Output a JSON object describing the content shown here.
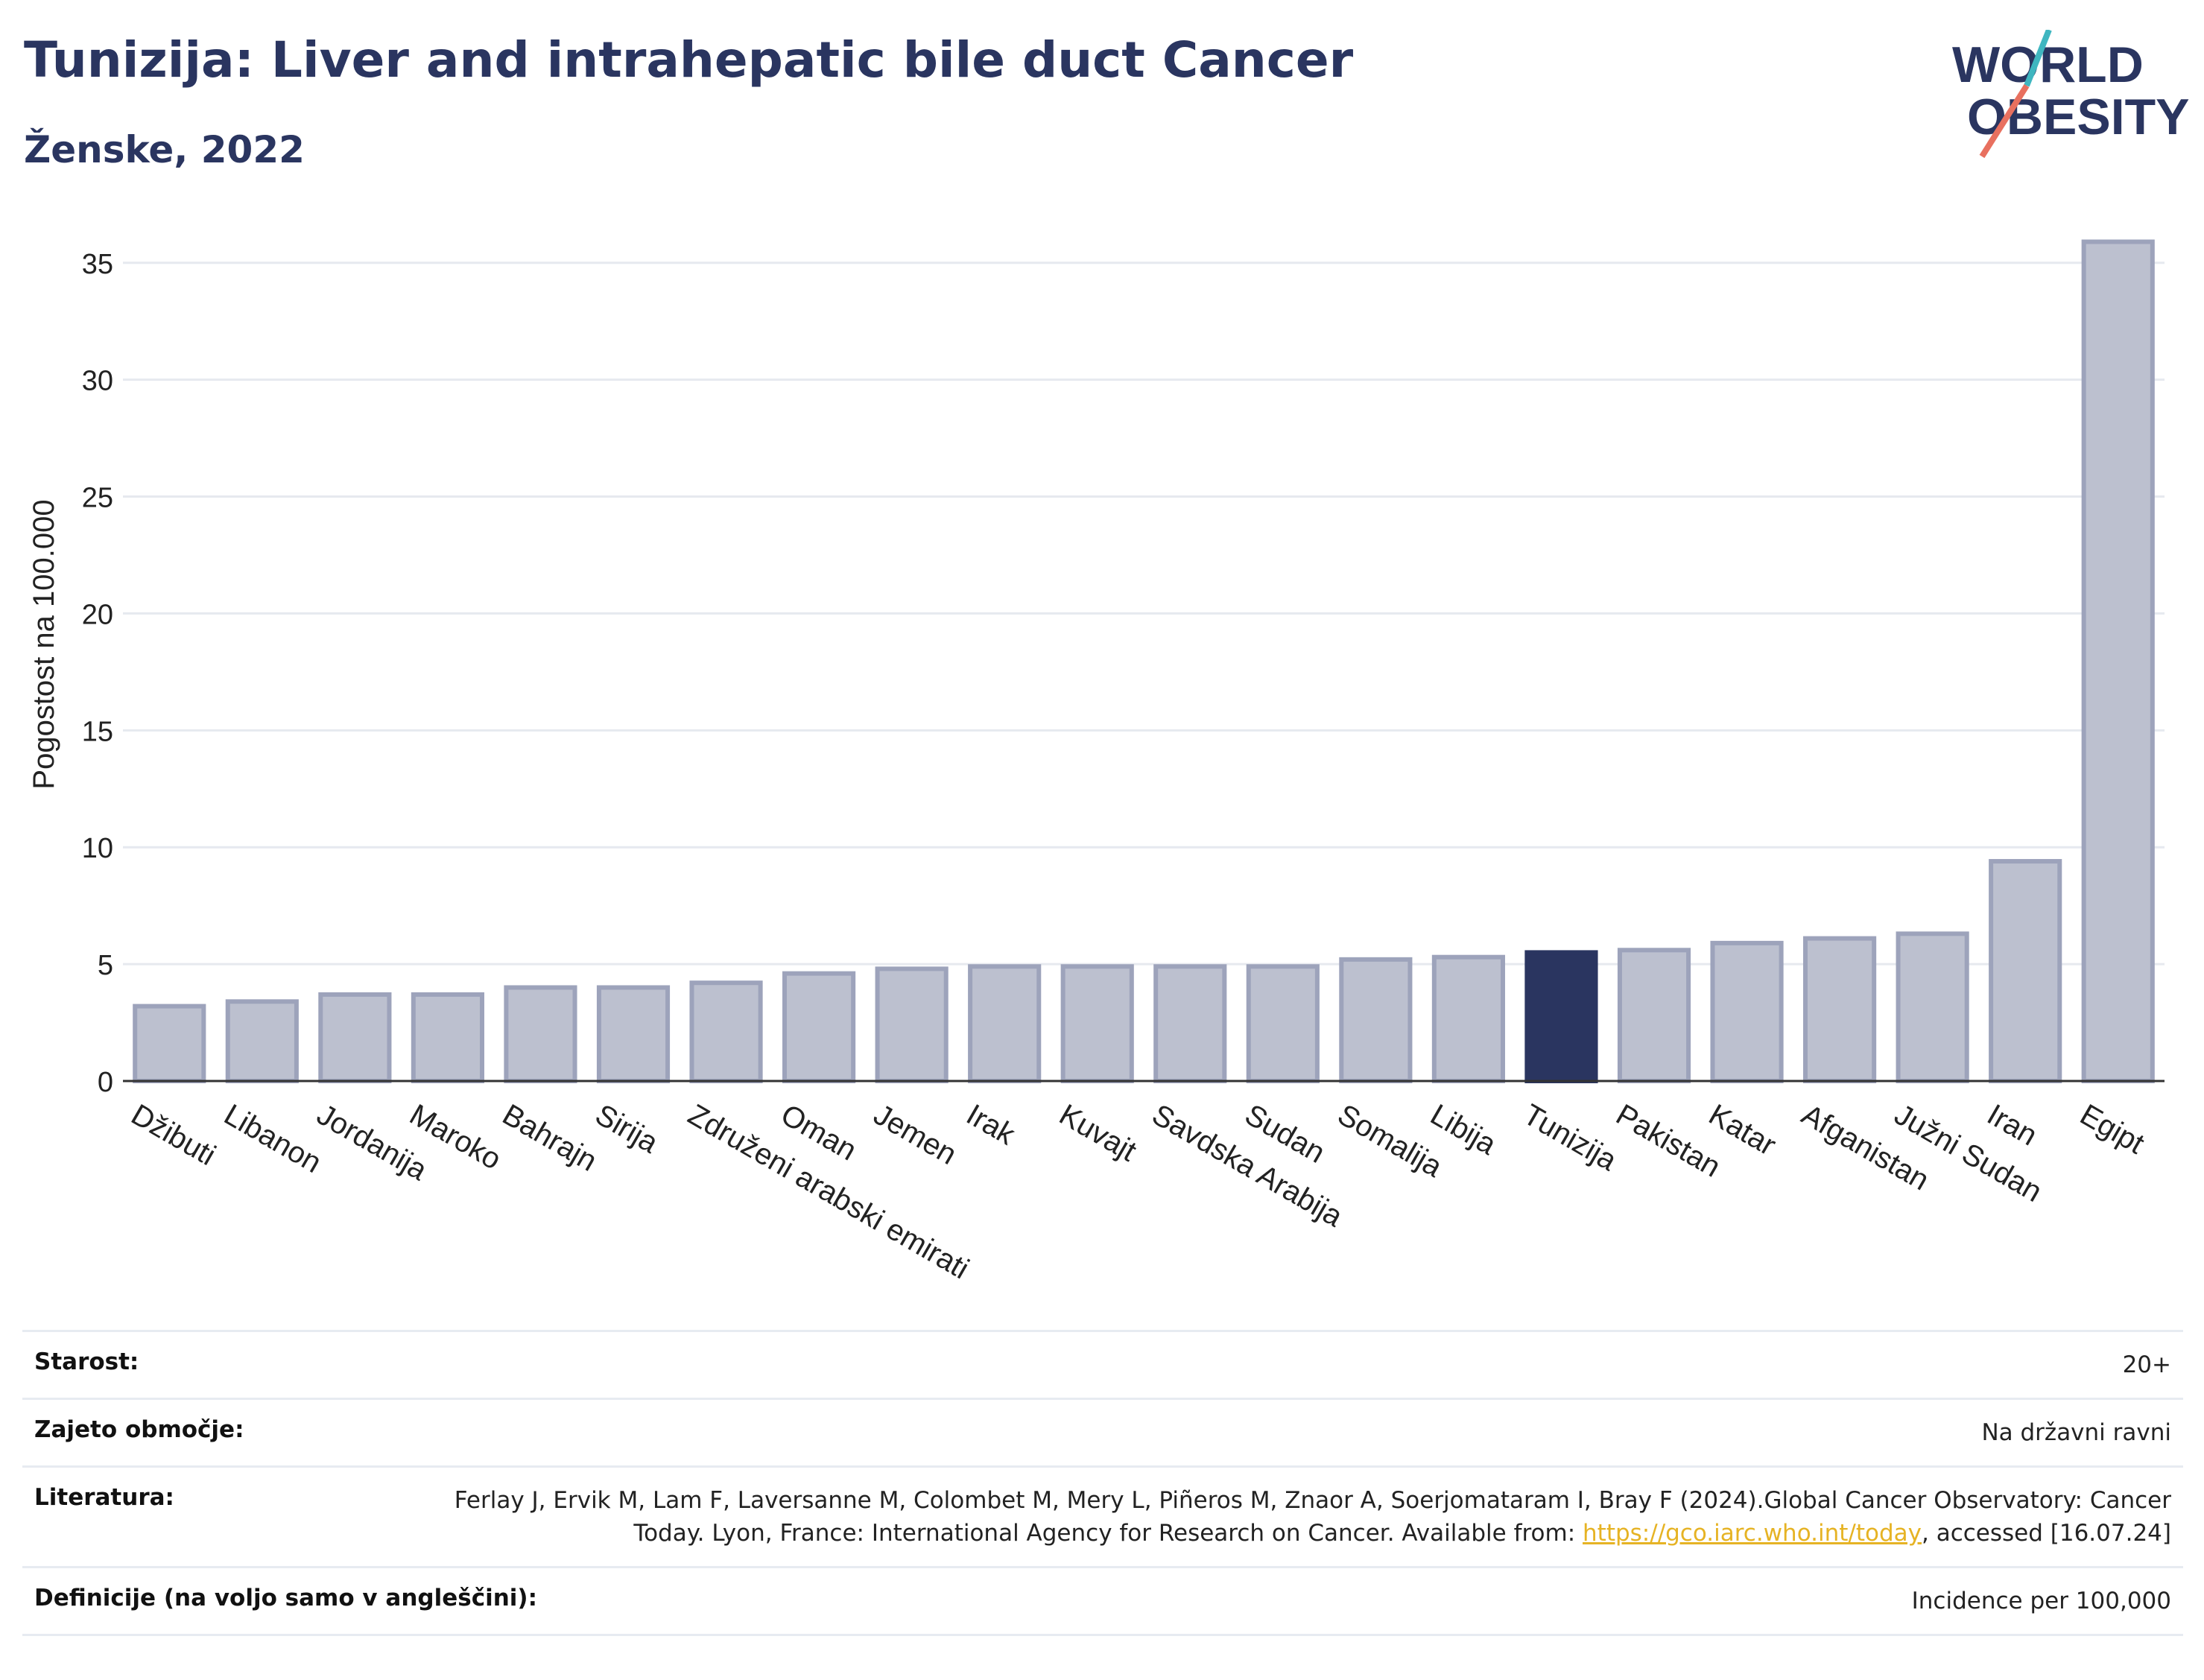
{
  "title": "Tunizija: Liver and intrahepatic bile duct Cancer",
  "subtitle": "Ženske, 2022",
  "logo": {
    "line1": "WORLD",
    "line2": "OBESITY"
  },
  "colors": {
    "bar": "#bcc0cf",
    "bar_edge": "#9da3bb",
    "highlight": "#2a3560",
    "title": "#2a3560",
    "grid": "#e6e9ef",
    "link": "#e6b324"
  },
  "chart_data": {
    "type": "bar",
    "ylabel": "Pogostost na 100.000",
    "xlabel": "",
    "ylim": [
      0,
      37
    ],
    "yticks": [
      0,
      5,
      10,
      15,
      20,
      25,
      30,
      35
    ],
    "grid": true,
    "highlight": "Tunizija",
    "categories": [
      "Džibuti",
      "Libanon",
      "Jordanija",
      "Maroko",
      "Bahrajn",
      "Sirija",
      "Združeni arabski emirati",
      "Oman",
      "Jemen",
      "Irak",
      "Kuvajt",
      "Savdska Arabija",
      "Sudan",
      "Somalija",
      "Libija",
      "Tunizija",
      "Pakistan",
      "Katar",
      "Afganistan",
      "Južni Sudan",
      "Iran",
      "Egipt"
    ],
    "values": [
      3.2,
      3.4,
      3.7,
      3.7,
      4.0,
      4.0,
      4.2,
      4.6,
      4.8,
      4.9,
      4.9,
      4.9,
      4.9,
      5.2,
      5.3,
      5.5,
      5.6,
      5.9,
      6.1,
      6.3,
      9.4,
      35.9
    ]
  },
  "info": {
    "age_label": "Starost:",
    "age_value": "20+",
    "coverage_label": "Zajeto območje:",
    "coverage_value": "Na državni ravni",
    "lit_label": "Literatura:",
    "lit_text1": "Ferlay J, Ervik M, Lam F, Laversanne M, Colombet M, Mery L, Piñeros M, Znaor A, Soerjomataram I, Bray F (2024).Global Cancer Observatory: Cancer Today. Lyon, France: International Agency for Research on Cancer. Available from: ",
    "lit_link": "https://gco.iarc.who.int/today",
    "lit_text2": ", accessed [16.07.24]",
    "def_label": "Definicije (na voljo samo v angleščini):",
    "def_value": "Incidence per 100,000"
  }
}
